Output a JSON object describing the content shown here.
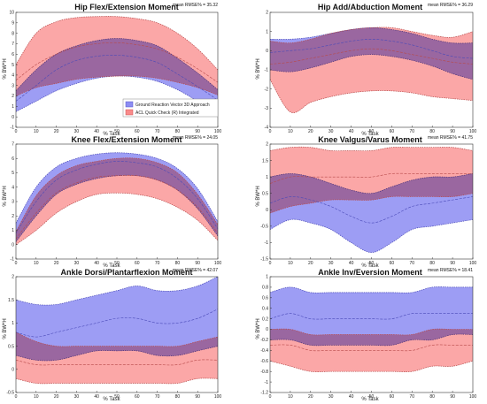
{
  "colors": {
    "blue_band": "#8c8cf2",
    "pink_band": "#f98a8a",
    "overlap": "#d05a9a",
    "axis": "#333333"
  },
  "legend": {
    "entries": [
      "Ground Reaction Vector 3D Approach",
      "ACL Quick Check (R) Integrated"
    ]
  },
  "chart_data": [
    {
      "type": "area",
      "title": "Hip Flex/Extension Moment",
      "annotation": "mean RMSE% = 35.32",
      "xlabel": "% Task",
      "ylabel": "% BW*H",
      "xlim": [
        0,
        100
      ],
      "ylim": [
        -1,
        10
      ],
      "xticks": [
        0,
        10,
        20,
        30,
        40,
        50,
        60,
        70,
        80,
        90,
        100
      ],
      "yticks": [
        -1,
        0,
        1,
        2,
        3,
        4,
        5,
        6,
        7,
        8,
        9,
        10
      ],
      "x": [
        0,
        10,
        20,
        30,
        40,
        50,
        60,
        70,
        80,
        90,
        100
      ],
      "legend_position": "bottom-center",
      "series": [
        {
          "name": "Ground Reaction Vector 3D Approach",
          "color": "blue",
          "lower": [
            0.5,
            1.5,
            2.5,
            3.2,
            3.7,
            3.9,
            3.8,
            3.4,
            2.6,
            1.5,
            0.4
          ],
          "mean": [
            1.5,
            3.0,
            4.5,
            5.4,
            5.8,
            5.9,
            5.7,
            5.2,
            4.1,
            2.9,
            1.6
          ],
          "upper": [
            2.5,
            4.5,
            6.0,
            6.8,
            7.3,
            7.5,
            7.3,
            6.8,
            5.6,
            4.2,
            2.6
          ]
        },
        {
          "name": "ACL Quick Check (R) Integrated",
          "color": "pink",
          "lower": [
            2.0,
            2.8,
            3.2,
            3.6,
            3.8,
            3.9,
            3.9,
            3.7,
            3.3,
            2.8,
            2.1
          ],
          "mean": [
            3.5,
            5.0,
            6.0,
            6.7,
            7.0,
            7.1,
            6.9,
            6.5,
            5.7,
            4.6,
            3.3
          ],
          "upper": [
            5.0,
            8.0,
            9.1,
            9.5,
            9.6,
            9.6,
            9.4,
            9.0,
            8.0,
            6.5,
            4.5
          ]
        }
      ]
    },
    {
      "type": "area",
      "title": "Hip Add/Abduction Moment",
      "annotation": "mean RMSE% = 36.29",
      "xlabel": "% Task",
      "ylabel": "% BW*H",
      "xlim": [
        0,
        100
      ],
      "ylim": [
        -4,
        2
      ],
      "xticks": [
        0,
        10,
        20,
        30,
        40,
        50,
        60,
        70,
        80,
        90,
        100
      ],
      "yticks": [
        -4,
        -3,
        -2,
        -1,
        0,
        1,
        2
      ],
      "x": [
        0,
        10,
        20,
        30,
        40,
        50,
        60,
        70,
        80,
        90,
        100
      ],
      "series": [
        {
          "name": "Ground Reaction Vector 3D Approach",
          "color": "blue",
          "lower": [
            -1.0,
            -1.1,
            -0.9,
            -0.6,
            -0.3,
            -0.2,
            -0.3,
            -0.5,
            -0.8,
            -1.2,
            -1.5
          ],
          "mean": [
            -0.1,
            0.0,
            0.1,
            0.3,
            0.5,
            0.6,
            0.5,
            0.3,
            0.0,
            -0.3,
            -0.4
          ],
          "upper": [
            0.6,
            0.6,
            0.7,
            0.9,
            1.1,
            1.2,
            1.1,
            0.9,
            0.6,
            0.4,
            0.4
          ]
        },
        {
          "name": "ACL Quick Check (R) Integrated",
          "color": "pink",
          "lower": [
            -1.5,
            -3.2,
            -2.7,
            -2.4,
            -2.2,
            -2.1,
            -2.1,
            -2.2,
            -2.4,
            -2.5,
            -2.6
          ],
          "mean": [
            -0.7,
            -0.6,
            -0.4,
            -0.2,
            0.0,
            0.1,
            0.0,
            -0.2,
            -0.4,
            -0.6,
            -0.7
          ],
          "upper": [
            0.5,
            0.4,
            0.6,
            0.9,
            1.1,
            1.2,
            1.2,
            1.0,
            0.8,
            0.7,
            1.0
          ]
        }
      ]
    },
    {
      "type": "area",
      "title": "Knee Flex/Extension Moment",
      "annotation": "mean RMSE% = 24.05",
      "xlabel": "% Task",
      "ylabel": "% BW*H",
      "xlim": [
        0,
        100
      ],
      "ylim": [
        -1,
        7
      ],
      "xticks": [
        0,
        10,
        20,
        30,
        40,
        50,
        60,
        70,
        80,
        90,
        100
      ],
      "yticks": [
        -1,
        0,
        1,
        2,
        3,
        4,
        5,
        6,
        7
      ],
      "x": [
        0,
        10,
        20,
        30,
        40,
        50,
        60,
        70,
        80,
        90,
        100
      ],
      "series": [
        {
          "name": "Ground Reaction Vector 3D Approach",
          "color": "blue",
          "lower": [
            0.2,
            2.0,
            3.5,
            4.2,
            4.6,
            4.8,
            4.8,
            4.5,
            3.8,
            2.5,
            0.6
          ],
          "mean": [
            0.8,
            3.0,
            4.5,
            5.2,
            5.6,
            5.8,
            5.7,
            5.4,
            4.6,
            3.2,
            1.1
          ],
          "upper": [
            1.5,
            4.0,
            5.4,
            6.0,
            6.3,
            6.4,
            6.3,
            6.0,
            5.3,
            3.9,
            1.6
          ]
        },
        {
          "name": "ACL Quick Check (R) Integrated",
          "color": "pink",
          "lower": [
            0.0,
            1.0,
            2.2,
            3.0,
            3.5,
            3.6,
            3.5,
            3.2,
            2.6,
            1.7,
            0.3
          ],
          "mean": [
            0.4,
            2.2,
            3.6,
            4.3,
            4.7,
            4.8,
            4.8,
            4.5,
            3.8,
            2.6,
            0.8
          ],
          "upper": [
            0.9,
            3.4,
            4.8,
            5.5,
            5.8,
            6.0,
            6.0,
            5.7,
            5.0,
            3.5,
            1.4
          ]
        }
      ]
    },
    {
      "type": "area",
      "title": "Knee Valgus/Varus Moment",
      "annotation": "mean RMSE% = 41.75",
      "xlabel": "% Task",
      "ylabel": "% BW*H",
      "xlim": [
        0,
        100
      ],
      "ylim": [
        -1.5,
        2
      ],
      "xticks": [
        0,
        10,
        20,
        30,
        40,
        50,
        60,
        70,
        80,
        90,
        100
      ],
      "yticks": [
        -1.5,
        -1,
        -0.5,
        0,
        0.5,
        1,
        1.5,
        2
      ],
      "x": [
        0,
        10,
        20,
        30,
        40,
        50,
        60,
        70,
        80,
        90,
        100
      ],
      "series": [
        {
          "name": "Ground Reaction Vector 3D Approach",
          "color": "blue",
          "lower": [
            -0.6,
            -0.3,
            -0.4,
            -0.6,
            -1.0,
            -1.3,
            -1.0,
            -0.6,
            -0.5,
            -0.4,
            -0.3
          ],
          "mean": [
            0.2,
            0.4,
            0.3,
            0.1,
            -0.2,
            -0.4,
            -0.2,
            0.1,
            0.2,
            0.3,
            0.4
          ],
          "upper": [
            1.0,
            1.1,
            1.0,
            0.8,
            0.6,
            0.5,
            0.7,
            0.9,
            1.0,
            1.0,
            1.1
          ]
        },
        {
          "name": "ACL Quick Check (R) Integrated",
          "color": "pink",
          "lower": [
            -0.1,
            0.1,
            0.2,
            0.3,
            0.3,
            0.3,
            0.4,
            0.4,
            0.4,
            0.4,
            0.5
          ],
          "mean": [
            0.8,
            1.0,
            1.0,
            1.0,
            1.0,
            1.0,
            1.1,
            1.1,
            1.1,
            1.1,
            1.1
          ],
          "upper": [
            1.8,
            1.9,
            1.9,
            1.8,
            1.8,
            1.8,
            1.9,
            1.9,
            1.9,
            1.9,
            1.8
          ]
        }
      ]
    },
    {
      "type": "area",
      "title": "Ankle Dorsi/Plantarflexion Moment",
      "annotation": "mean RMSE% = 42.07",
      "xlabel": "% Task",
      "ylabel": "% BW*H",
      "xlim": [
        0,
        100
      ],
      "ylim": [
        -0.5,
        2
      ],
      "xticks": [
        0,
        10,
        20,
        30,
        40,
        50,
        60,
        70,
        80,
        90,
        100
      ],
      "yticks": [
        -0.5,
        0,
        0.5,
        1,
        1.5,
        2
      ],
      "x": [
        0,
        10,
        20,
        30,
        40,
        50,
        60,
        70,
        80,
        90,
        100
      ],
      "series": [
        {
          "name": "Ground Reaction Vector 3D Approach",
          "color": "blue",
          "lower": [
            0.3,
            0.2,
            0.2,
            0.3,
            0.4,
            0.4,
            0.4,
            0.3,
            0.3,
            0.4,
            0.5
          ],
          "mean": [
            0.8,
            0.7,
            0.8,
            0.9,
            1.0,
            1.1,
            1.1,
            1.0,
            1.0,
            1.1,
            1.3
          ],
          "upper": [
            1.5,
            1.4,
            1.4,
            1.5,
            1.6,
            1.7,
            1.8,
            1.7,
            1.7,
            1.8,
            2.0
          ]
        },
        {
          "name": "ACL Quick Check (R) Integrated",
          "color": "pink",
          "lower": [
            -0.2,
            -0.3,
            -0.3,
            -0.3,
            -0.3,
            -0.3,
            -0.3,
            -0.3,
            -0.3,
            -0.2,
            -0.2
          ],
          "mean": [
            0.2,
            0.1,
            0.1,
            0.1,
            0.1,
            0.1,
            0.1,
            0.1,
            0.1,
            0.2,
            0.2
          ],
          "upper": [
            0.8,
            0.6,
            0.5,
            0.5,
            0.5,
            0.5,
            0.5,
            0.5,
            0.5,
            0.6,
            0.7
          ]
        }
      ]
    },
    {
      "type": "area",
      "title": "Ankle Inv/Eversion Moment",
      "annotation": "mean RMSE% = 18.41",
      "xlabel": "% Task",
      "ylabel": "% BW*H",
      "xlim": [
        0,
        100
      ],
      "ylim": [
        -1.2,
        1
      ],
      "xticks": [
        0,
        10,
        20,
        30,
        40,
        50,
        60,
        70,
        80,
        90,
        100
      ],
      "yticks": [
        -1.2,
        -1,
        -0.8,
        -0.6,
        -0.4,
        -0.2,
        0,
        0.2,
        0.4,
        0.6,
        0.8,
        1
      ],
      "x": [
        0,
        10,
        20,
        30,
        40,
        50,
        60,
        70,
        80,
        90,
        100
      ],
      "series": [
        {
          "name": "Ground Reaction Vector 3D Approach",
          "color": "blue",
          "lower": [
            -0.2,
            -0.2,
            -0.3,
            -0.3,
            -0.3,
            -0.3,
            -0.3,
            -0.2,
            -0.2,
            -0.1,
            -0.1
          ],
          "mean": [
            0.2,
            0.3,
            0.2,
            0.2,
            0.2,
            0.2,
            0.2,
            0.3,
            0.3,
            0.3,
            0.3
          ],
          "upper": [
            0.7,
            0.8,
            0.7,
            0.7,
            0.7,
            0.7,
            0.7,
            0.7,
            0.8,
            0.8,
            0.8
          ]
        },
        {
          "name": "ACL Quick Check (R) Integrated",
          "color": "pink",
          "lower": [
            -0.6,
            -0.7,
            -0.8,
            -0.8,
            -0.8,
            -0.8,
            -0.8,
            -0.8,
            -0.7,
            -0.7,
            -0.6
          ],
          "mean": [
            -0.3,
            -0.3,
            -0.4,
            -0.4,
            -0.4,
            -0.4,
            -0.4,
            -0.4,
            -0.3,
            -0.3,
            -0.3
          ],
          "upper": [
            0.0,
            0.0,
            -0.1,
            -0.1,
            -0.1,
            -0.1,
            -0.1,
            -0.1,
            0.0,
            0.0,
            0.0
          ]
        }
      ]
    }
  ]
}
